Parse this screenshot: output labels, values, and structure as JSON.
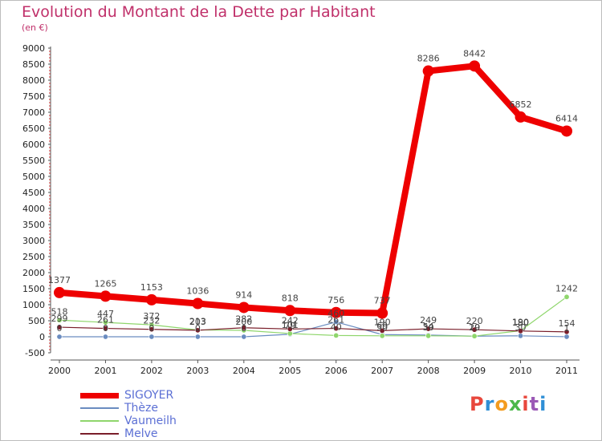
{
  "header": {
    "title": "Evolution du Montant de la Dette par Habitant",
    "subtitle": "(en €)"
  },
  "logo": {
    "text": "Proxiti",
    "colors": [
      "#e8473c",
      "#2f8fd6",
      "#f39c1f",
      "#4bb84a",
      "#e8473c",
      "#9b59b6",
      "#2f8fd6"
    ]
  },
  "chart_data": {
    "type": "line",
    "x": [
      "2000",
      "2001",
      "2002",
      "2003",
      "2004",
      "2005",
      "2006",
      "2007",
      "2008",
      "2009",
      "2010",
      "2011"
    ],
    "ylim": [
      -500,
      9000
    ],
    "yticks": [
      -500,
      0,
      500,
      1000,
      1500,
      2000,
      2500,
      3000,
      3500,
      4000,
      4500,
      5000,
      5500,
      6000,
      6500,
      7000,
      7500,
      8000,
      8500,
      9000
    ],
    "grid": false,
    "legend_position": "bottom-left",
    "series": [
      {
        "name": "SIGOYER",
        "color": "#ee0000",
        "values": [
          1377,
          1265,
          1153,
          1036,
          914,
          818,
          756,
          737,
          8286,
          8442,
          6852,
          6414
        ],
        "labels": [
          "1377",
          "1265",
          "1153",
          "1036",
          "914",
          "818",
          "756",
          "737",
          "8286",
          "8442",
          "6852",
          "6414"
        ]
      },
      {
        "name": "Thèze",
        "color": "#6a8cc0",
        "values": [
          0,
          0,
          0,
          0,
          0,
          79,
          460,
          69,
          54,
          19,
          30,
          1
        ],
        "labels": [
          "0",
          "0",
          "0",
          "0",
          "0",
          "79",
          "460",
          "69",
          "54",
          "19",
          "30",
          "1"
        ]
      },
      {
        "name": "Vaumeilh",
        "color": "#8fd66c",
        "values": [
          518,
          447,
          372,
          213,
          200,
          101,
          40,
          30,
          30,
          20,
          190,
          1242
        ],
        "labels": [
          "518",
          "447",
          "372",
          "213",
          "200",
          "101",
          "40",
          "30",
          "30",
          "20",
          "190",
          "1242"
        ]
      },
      {
        "name": "Melve",
        "color": "#7a1e2a",
        "values": [
          299,
          261,
          232,
          203,
          282,
          242,
          261,
          190,
          249,
          220,
          180,
          154
        ],
        "labels": [
          "299",
          "261",
          "232",
          "203",
          "282",
          "242",
          "261",
          "190",
          "249",
          "220",
          "180",
          "154"
        ]
      }
    ]
  }
}
